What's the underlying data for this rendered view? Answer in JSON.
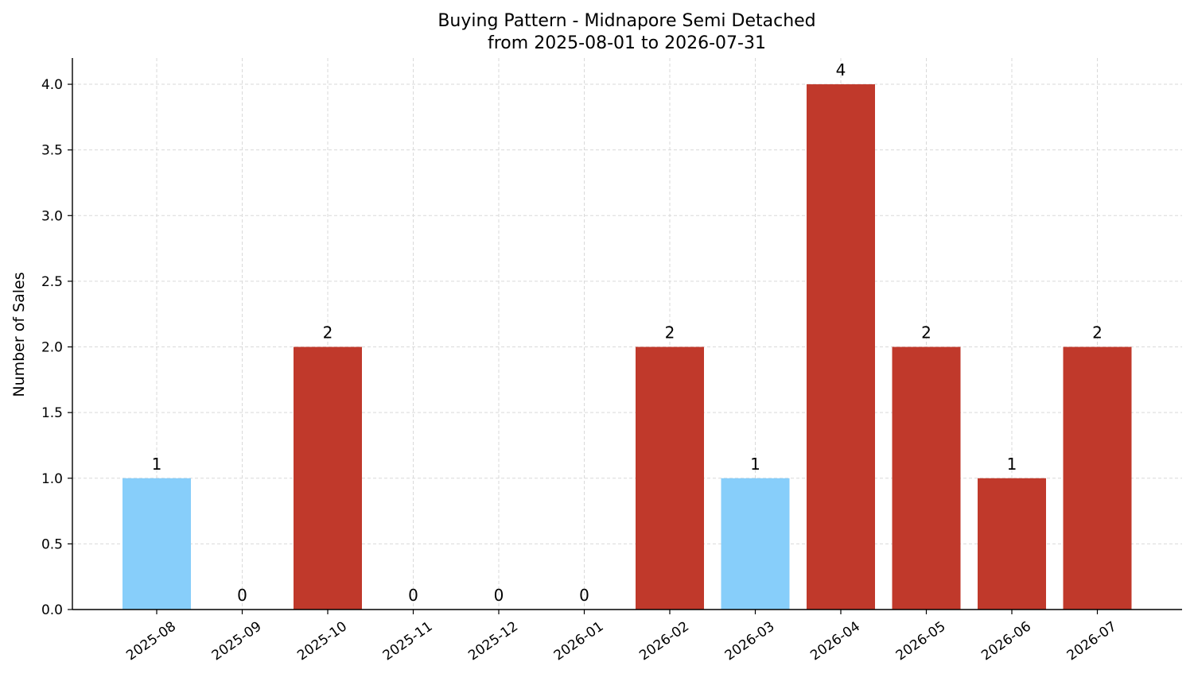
{
  "chart_data": {
    "type": "bar",
    "title": "Buying Pattern - Midnapore Semi Detached",
    "subtitle": "from 2025-08-01 to 2026-07-31",
    "xlabel": "",
    "ylabel": "Number of Sales",
    "categories": [
      "2025-08",
      "2025-09",
      "2025-10",
      "2025-11",
      "2025-12",
      "2026-01",
      "2026-02",
      "2026-03",
      "2026-04",
      "2026-05",
      "2026-06",
      "2026-07"
    ],
    "values": [
      1,
      0,
      2,
      0,
      0,
      0,
      2,
      1,
      4,
      2,
      1,
      2
    ],
    "bar_colors": [
      "#87CEFA",
      "#C0392B",
      "#C0392B",
      "#C0392B",
      "#C0392B",
      "#C0392B",
      "#C0392B",
      "#87CEFA",
      "#C0392B",
      "#C0392B",
      "#C0392B",
      "#C0392B"
    ],
    "ylim": [
      0,
      4.2
    ],
    "yticks": [
      0.0,
      0.5,
      1.0,
      1.5,
      2.0,
      2.5,
      3.0,
      3.5,
      4.0
    ],
    "ytick_labels": [
      "0.0",
      "0.5",
      "1.0",
      "1.5",
      "2.0",
      "2.5",
      "3.0",
      "3.5",
      "4.0"
    ],
    "grid": true,
    "data_labels": [
      "1",
      "0",
      "2",
      "0",
      "0",
      "0",
      "2",
      "1",
      "4",
      "2",
      "1",
      "2"
    ]
  }
}
